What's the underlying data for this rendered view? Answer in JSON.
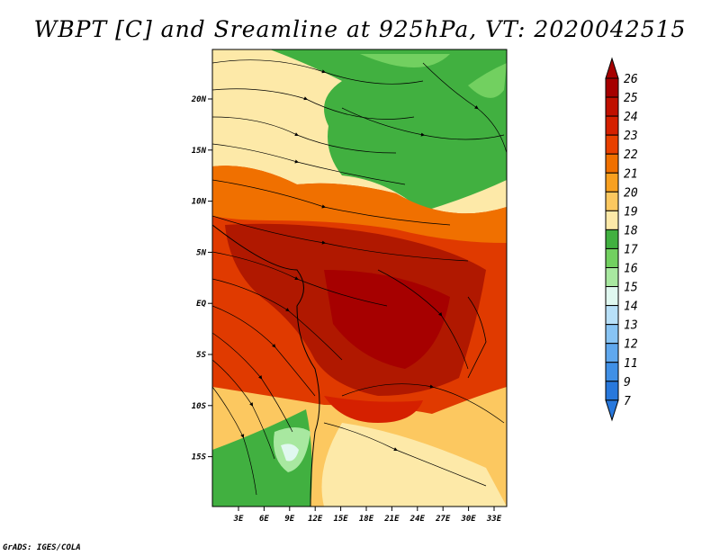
{
  "title": "WBPT [C] and Sreamline at 925hPa, VT: 2020042515",
  "credit": "GrADS: IGES/COLA",
  "map": {
    "lat_labels": [
      "20N",
      "15N",
      "10N",
      "5N",
      "EQ",
      "5S",
      "10S",
      "15S"
    ],
    "lon_labels": [
      "3E",
      "6E",
      "9E",
      "12E",
      "15E",
      "18E",
      "21E",
      "24E",
      "27E",
      "30E",
      "33E"
    ]
  },
  "colorbar": {
    "levels": [
      "26",
      "25",
      "24",
      "23",
      "22",
      "21",
      "20",
      "19",
      "18",
      "17",
      "16",
      "15",
      "14",
      "13",
      "12",
      "11",
      "9",
      "7"
    ],
    "colors": [
      "#a60000",
      "#c01000",
      "#d52000",
      "#e84000",
      "#f07000",
      "#f8a020",
      "#fcc860",
      "#fde9a8",
      "#41b040",
      "#72d060",
      "#a8e8a0",
      "#e0f8f0",
      "#b8e0f8",
      "#88c4f4",
      "#60a8ee",
      "#4090e6",
      "#2878dc"
    ]
  }
}
